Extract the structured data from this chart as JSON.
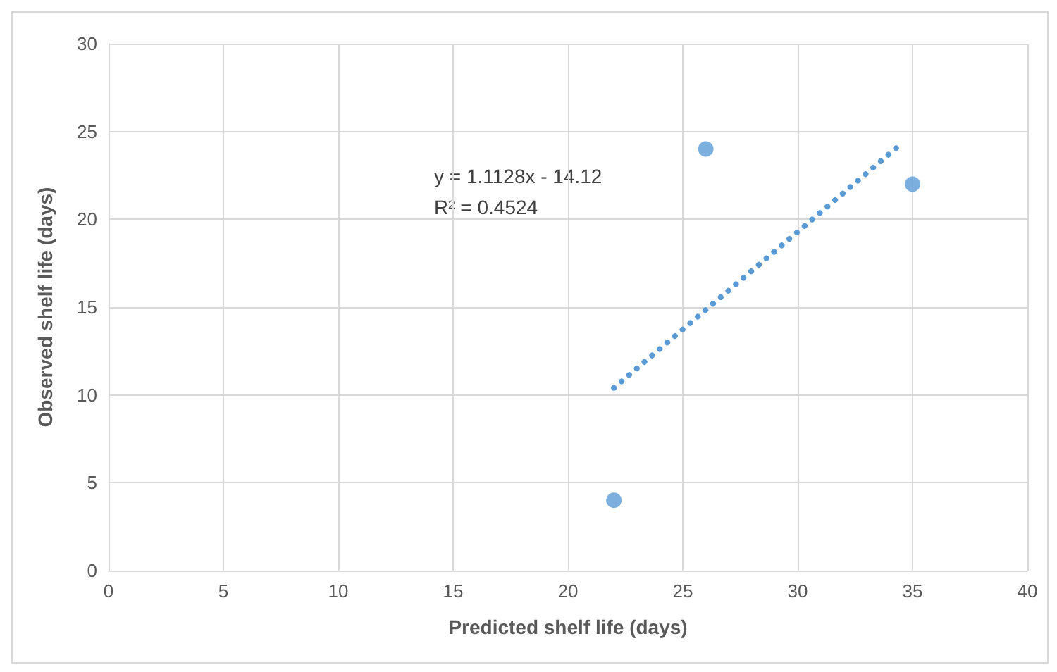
{
  "chart_data": {
    "type": "scatter",
    "xlabel": "Predicted shelf life (days)",
    "ylabel": "Observed shelf life (days)",
    "annotations": [
      "y = 1.1128x - 14.12",
      "R² = 0.4524"
    ],
    "series": [
      {
        "color": "#5b9bd5",
        "x": [
          22,
          26,
          35
        ],
        "values": [
          4,
          24,
          22
        ],
        "marker": "circle"
      },
      {
        "type": "line",
        "color": "#5b9bd5",
        "x": [
          22,
          34.6
        ],
        "values": [
          10.4,
          24.4
        ],
        "line_style": "dotted",
        "marker": "none"
      }
    ],
    "xlim": [
      0,
      40
    ],
    "xticks": [
      0,
      5,
      10,
      15,
      20,
      25,
      30,
      35,
      40
    ],
    "ylim": [
      0,
      30
    ],
    "yticks": [
      0,
      5,
      10,
      15,
      20,
      25,
      30
    ],
    "grid": true
  }
}
